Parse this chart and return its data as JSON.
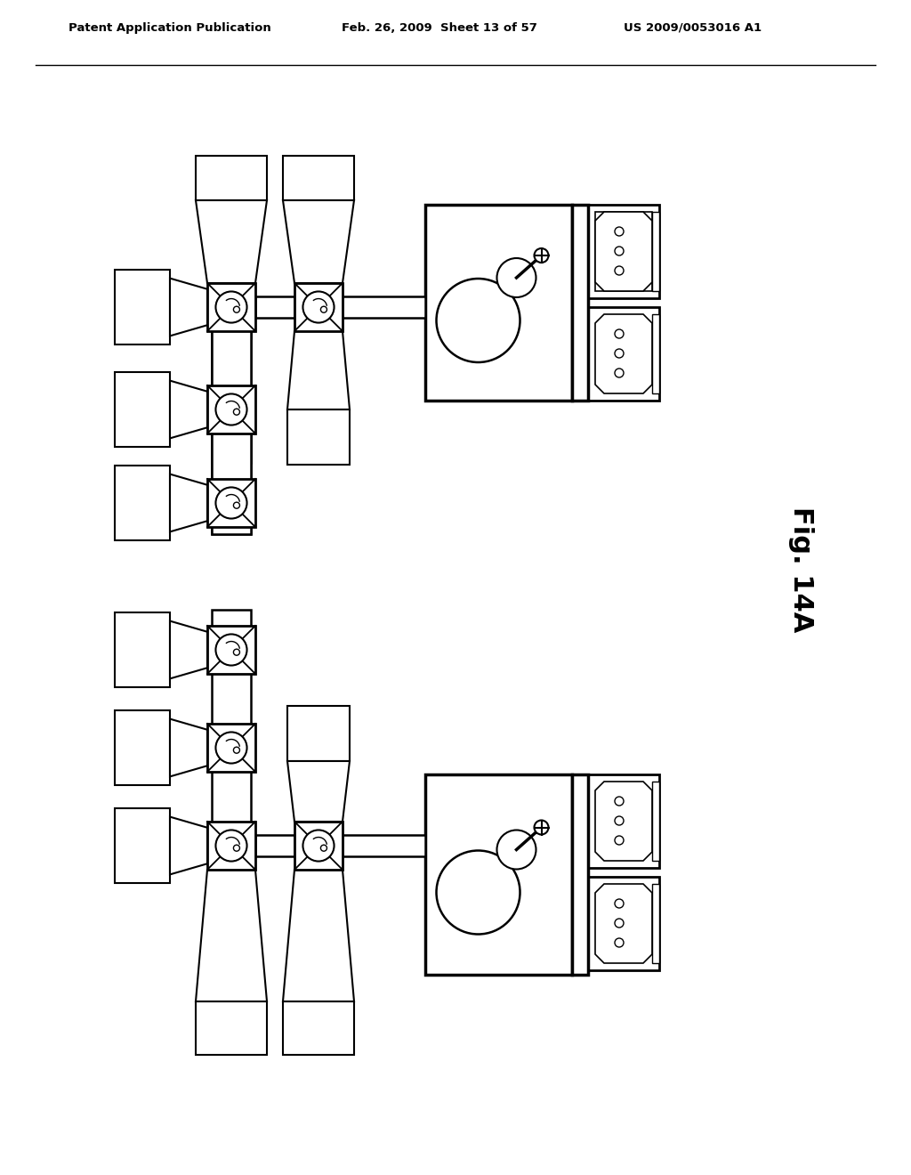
{
  "title_left": "Patent Application Publication",
  "title_mid": "Feb. 26, 2009  Sheet 13 of 57",
  "title_right": "US 2009/0053016 A1",
  "fig_label": "Fig. 14A",
  "bg_color": "#ffffff",
  "line_color": "#000000"
}
